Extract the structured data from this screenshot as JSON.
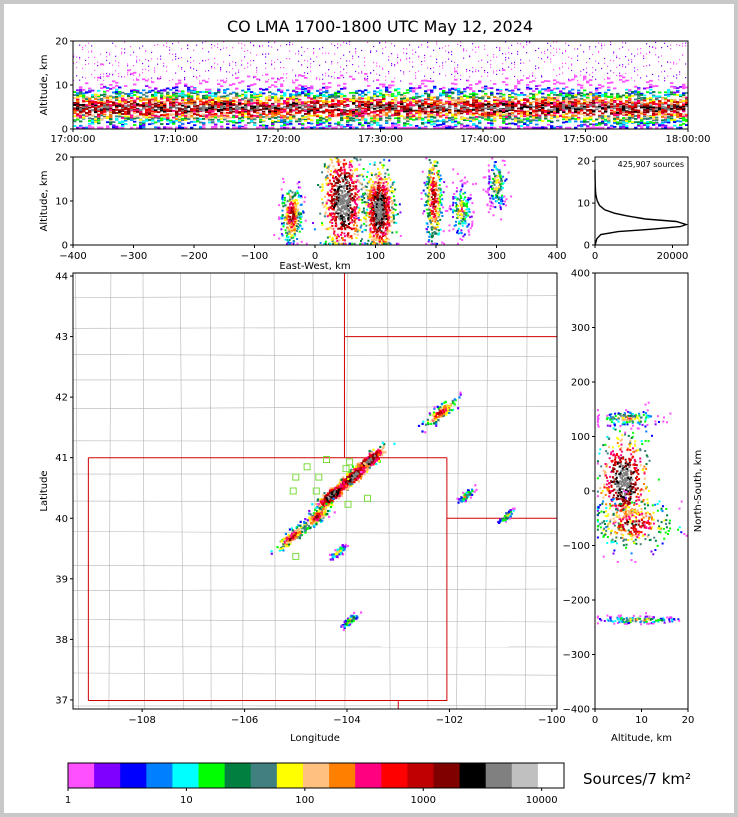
{
  "title": "CO LMA 1700-1800 UTC May 12, 2024",
  "sources_count": "425,907 sources",
  "colorbar_label": "Sources/7 km²",
  "colorbar_ticks": [
    "1",
    "10",
    "100",
    "1000",
    "10000"
  ],
  "colors": {
    "frame_bg": "#c8c8c8",
    "plot_bg": "#ffffff",
    "state_border": "#d00000",
    "county_line": "#b4b4b4",
    "station_marker": "#7cdc3c"
  },
  "colorbar_colors": [
    "#ff50ff",
    "#8000ff",
    "#0000ff",
    "#0080ff",
    "#00ffff",
    "#00ff00",
    "#008040",
    "#408080",
    "#ffff00",
    "#ffc080",
    "#ff8000",
    "#ff0080",
    "#ff0000",
    "#c00000",
    "#800000",
    "#000000",
    "#808080",
    "#c0c0c0",
    "#ffffff"
  ],
  "chart_data": [
    {
      "id": "time-height",
      "type": "heatmap",
      "xlabel": "",
      "ylabel": "Altitude, km",
      "x_ticks": [
        "17:00:00",
        "17:10:00",
        "17:20:00",
        "17:30:00",
        "17:40:00",
        "17:50:00",
        "18:00:00"
      ],
      "y_ticks": [
        0,
        10,
        20
      ],
      "xlim": [
        "17:00:00",
        "18:00:00"
      ],
      "ylim": [
        0,
        20
      ],
      "dense_altitude_band_km": [
        2,
        11
      ],
      "peak_altitude_km": 5
    },
    {
      "id": "east-west-altitude",
      "type": "heatmap",
      "xlabel": "East-West, km",
      "ylabel": "Altitude, km",
      "x_ticks": [
        -400,
        -300,
        -200,
        -100,
        0,
        100,
        200,
        300,
        400
      ],
      "y_ticks": [
        0,
        10,
        20
      ],
      "xlim": [
        -400,
        400
      ],
      "ylim": [
        0,
        20
      ],
      "cells": [
        {
          "x": -40,
          "alt": 7,
          "w": 25,
          "h": 10,
          "intensity": "medium"
        },
        {
          "x": 45,
          "alt": 10,
          "w": 50,
          "h": 18,
          "intensity": "high"
        },
        {
          "x": 105,
          "alt": 8,
          "w": 35,
          "h": 14,
          "intensity": "high"
        },
        {
          "x": 195,
          "alt": 11,
          "w": 20,
          "h": 18,
          "intensity": "medium"
        },
        {
          "x": 240,
          "alt": 8,
          "w": 28,
          "h": 10,
          "intensity": "low"
        },
        {
          "x": 300,
          "alt": 14,
          "w": 25,
          "h": 10,
          "intensity": "low"
        }
      ]
    },
    {
      "id": "altitude-histogram",
      "type": "line",
      "xlabel": "",
      "ylabel": "",
      "x_ticks": [
        0,
        20000
      ],
      "y_ticks": [
        0,
        10,
        20
      ],
      "xlim": [
        0,
        24000
      ],
      "ylim": [
        0,
        21
      ],
      "series": [
        {
          "x": [
            0,
            500,
            1500,
            6000,
            15000,
            22000,
            23500,
            21000,
            13000,
            8000,
            5000,
            2500,
            1200,
            600,
            300,
            150,
            80,
            30,
            0
          ],
          "y": [
            0,
            1.5,
            2.5,
            3.2,
            3.8,
            4.4,
            4.9,
            5.6,
            6.2,
            7,
            7.6,
            8.4,
            9.4,
            10.5,
            11.5,
            12.5,
            14,
            16,
            18
          ]
        }
      ]
    },
    {
      "id": "plan-view-map",
      "type": "scatter",
      "xlabel": "Longitude",
      "ylabel": "Latitude",
      "x_ticks": [
        -108,
        -106,
        -104,
        -102,
        -100
      ],
      "y_ticks": [
        37,
        38,
        39,
        40,
        41,
        42,
        43,
        44
      ],
      "xlim": [
        -109.35,
        -99.9
      ],
      "ylim": [
        36.85,
        44.05
      ],
      "clusters": [
        {
          "lon": -103.6,
          "lat": 40.95,
          "intensity": "high"
        },
        {
          "lon": -103.9,
          "lat": 40.7,
          "intensity": "high"
        },
        {
          "lon": -104.3,
          "lat": 40.4,
          "intensity": "high"
        },
        {
          "lon": -104.6,
          "lat": 40.05,
          "intensity": "medium"
        },
        {
          "lon": -105.1,
          "lat": 39.7,
          "intensity": "medium"
        },
        {
          "lon": -102.2,
          "lat": 41.75,
          "intensity": "medium"
        },
        {
          "lon": -101.7,
          "lat": 40.38,
          "intensity": "low"
        },
        {
          "lon": -100.9,
          "lat": 40.05,
          "intensity": "low"
        },
        {
          "lon": -104.2,
          "lat": 39.45,
          "intensity": "low"
        },
        {
          "lon": -103.95,
          "lat": 38.33,
          "intensity": "low"
        }
      ],
      "stations": [
        {
          "lon": -104.4,
          "lat": 40.97
        },
        {
          "lon": -104.78,
          "lat": 40.85
        },
        {
          "lon": -105.0,
          "lat": 40.68
        },
        {
          "lon": -104.55,
          "lat": 40.68
        },
        {
          "lon": -104.6,
          "lat": 40.45
        },
        {
          "lon": -105.05,
          "lat": 40.45
        },
        {
          "lon": -103.95,
          "lat": 40.93
        },
        {
          "lon": -103.6,
          "lat": 40.33
        },
        {
          "lon": -103.98,
          "lat": 40.23
        },
        {
          "lon": -104.02,
          "lat": 40.82
        },
        {
          "lon": -105.0,
          "lat": 39.37
        }
      ],
      "state_lines": [
        [
          [
            -109.05,
            36.99
          ],
          [
            -102.04,
            36.99
          ]
        ],
        [
          [
            -109.05,
            41.0
          ],
          [
            -102.05,
            41.0
          ]
        ],
        [
          [
            -102.05,
            41.0
          ],
          [
            -102.05,
            36.99
          ]
        ],
        [
          [
            -109.05,
            41.0
          ],
          [
            -109.05,
            36.99
          ]
        ],
        [
          [
            -104.05,
            44.05
          ],
          [
            -104.05,
            41.0
          ]
        ],
        [
          [
            -104.05,
            43.0
          ],
          [
            -99.9,
            43.0
          ]
        ],
        [
          [
            -102.05,
            40.0
          ],
          [
            -99.9,
            40.0
          ]
        ],
        [
          [
            -103.0,
            36.99
          ],
          [
            -103.0,
            36.85
          ]
        ]
      ]
    },
    {
      "id": "altitude-north-south",
      "type": "heatmap",
      "xlabel": "Altitude, km",
      "ylabel": "North-South, km",
      "x_ticks": [
        0,
        10,
        20
      ],
      "y_ticks": [
        -400,
        -300,
        -200,
        -100,
        0,
        100,
        200,
        300,
        400
      ],
      "xlim": [
        0,
        20
      ],
      "ylim": [
        -400,
        400
      ],
      "cells": [
        {
          "alt": 6,
          "y": 20,
          "w": 8,
          "h": 120,
          "intensity": "high"
        },
        {
          "alt": 8,
          "y": -60,
          "w": 14,
          "h": 70,
          "intensity": "medium"
        },
        {
          "alt": 7,
          "y": 135,
          "w": 12,
          "h": 25,
          "intensity": "low"
        },
        {
          "alt": 9,
          "y": -235,
          "w": 16,
          "h": 10,
          "intensity": "low"
        }
      ]
    }
  ]
}
